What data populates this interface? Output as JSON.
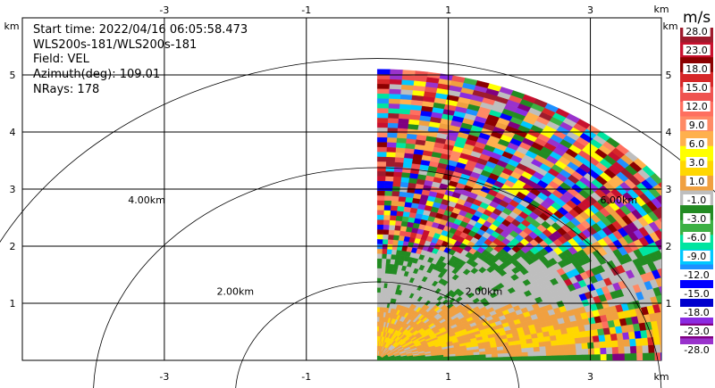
{
  "info": {
    "start_time": "Start time: 2022/04/16 06:05:58.473",
    "instrument": "WLS200s-181/WLS200s-181",
    "field": "Field: VEL",
    "azimuth": "Azimuth(deg): 109.01",
    "nrays": "NRays: 178"
  },
  "colorbar": {
    "unit": "m/s",
    "tick_labels": [
      "28.0",
      "23.0",
      "18.0",
      "15.0",
      "12.0",
      "9.0",
      "6.0",
      "3.0",
      "1.0",
      "-1.0",
      "-3.0",
      "-6.0",
      "-9.0",
      "-12.0",
      "-15.0",
      "-18.0",
      "-23.0",
      "-28.0"
    ],
    "colors": [
      "#9e1b2d",
      "#c8102e",
      "#8b0000",
      "#d62728",
      "#ef5350",
      "#ff6f5f",
      "#ff8a65",
      "#ffb04d",
      "#ffff00",
      "#ffd700",
      "#f0a040",
      "#bebebe",
      "#228b22",
      "#3cb043",
      "#00e5a0",
      "#00c8ff",
      "#1e90ff",
      "#0000ff",
      "#0000cd",
      "#8a2be2",
      "#800080",
      "#9932cc"
    ]
  },
  "chart_data": {
    "type": "heatmap",
    "title": "",
    "xlabel": "km",
    "ylabel": "km",
    "xlim": [
      -5,
      4
    ],
    "ylim": [
      0,
      5.5
    ],
    "x_ticks": [
      -3,
      -1,
      1,
      3
    ],
    "x_tick_labels": [
      "-3",
      "-1",
      "1",
      "3"
    ],
    "y_ticks": [
      1,
      2,
      3,
      4,
      5
    ],
    "y_tick_labels": [
      "1",
      "2",
      "3",
      "4",
      "5"
    ],
    "grid": true,
    "range_rings_km": [
      2,
      4,
      6
    ],
    "range_ring_labels": [
      "2.00km",
      "4.00km",
      "2.00km",
      "6.00km"
    ],
    "sector": {
      "azimuth_start_deg": 0,
      "azimuth_end_deg": 90,
      "max_range_km": 5.1,
      "origin": [
        0,
        0
      ]
    },
    "field": "VEL",
    "units": "m/s"
  }
}
